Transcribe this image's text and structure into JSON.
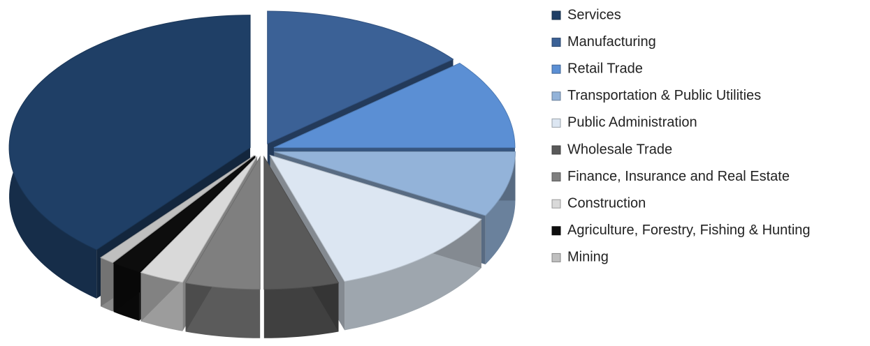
{
  "chart_data": {
    "type": "pie3d",
    "categories": [
      "Services",
      "Manufacturing",
      "Retail Trade",
      "Transportation & Public Utilities",
      "Public Administration",
      "Wholesale Trade",
      "Finance, Insurance and Real Estate",
      "Construction",
      "Agriculture, Forestry, Fishing & Hunting",
      "Mining"
    ],
    "values": [
      39,
      14,
      11,
      8,
      12,
      5,
      5,
      3,
      2,
      1
    ],
    "colors": [
      "#1f3f66",
      "#3b6196",
      "#5b8fd4",
      "#93b3d9",
      "#dce6f2",
      "#595959",
      "#7f7f7f",
      "#d9d9d9",
      "#0d0d0d",
      "#bfbfbf"
    ],
    "legend": "right"
  }
}
